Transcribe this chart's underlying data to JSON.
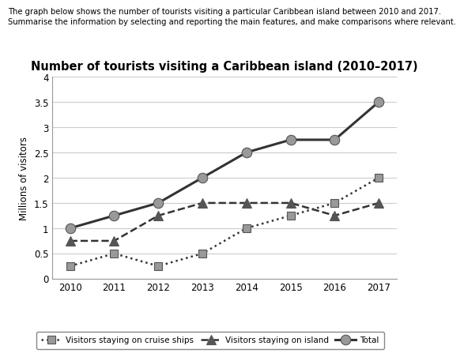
{
  "title": "Number of tourists visiting a Caribbean island (2010–2017)",
  "header_line1": "The graph below shows the number of tourists visiting a particular Caribbean island between 2010 and 2017.",
  "header_line2": "Summarise the information by selecting and reporting the main features, and make comparisons where relevant.",
  "ylabel": "Millions of visitors",
  "years": [
    2010,
    2011,
    2012,
    2013,
    2014,
    2015,
    2016,
    2017
  ],
  "cruise_ships": [
    0.25,
    0.5,
    0.25,
    0.5,
    1.0,
    1.25,
    1.5,
    2.0
  ],
  "on_island": [
    0.75,
    0.75,
    1.25,
    1.5,
    1.5,
    1.5,
    1.25,
    1.5
  ],
  "total": [
    1.0,
    1.25,
    1.5,
    2.0,
    2.5,
    2.75,
    2.75,
    3.5
  ],
  "ylim": [
    0,
    4
  ],
  "yticks": [
    0,
    0.5,
    1.0,
    1.5,
    2.0,
    2.5,
    3.0,
    3.5,
    4.0
  ],
  "grid_color": "#cccccc",
  "line_color": "#333333",
  "marker_gray": "#999999",
  "marker_dark": "#555555",
  "background_color": "#ffffff",
  "legend_label_cruise": "Visitors staying on cruise ships",
  "legend_label_island": "Visitors staying on island",
  "legend_label_total": "Total"
}
